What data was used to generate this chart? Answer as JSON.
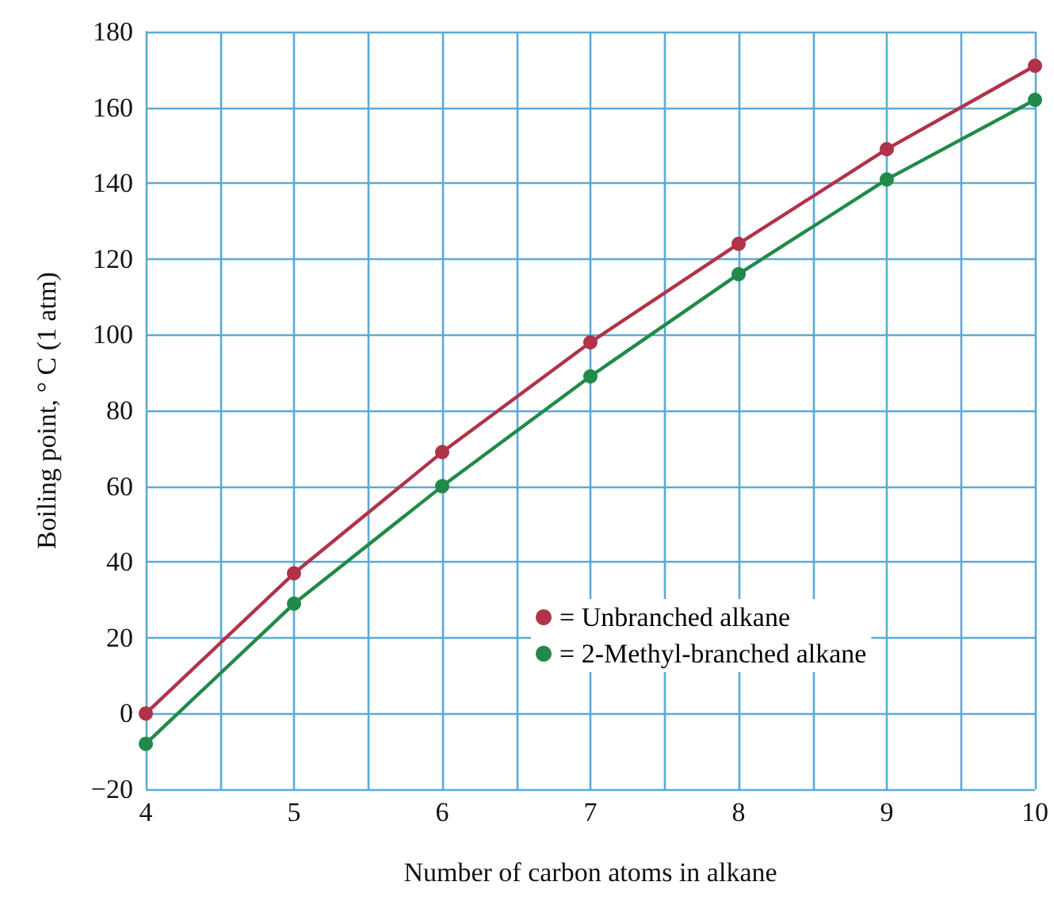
{
  "chart_data": {
    "type": "line",
    "xlabel": "Number of carbon atoms in alkane",
    "ylabel": "Boiling point, ° C (1 atm)",
    "x": [
      4,
      5,
      6,
      7,
      8,
      9,
      10
    ],
    "series": [
      {
        "name": "= Unbranched alkane",
        "color": "#b0334a",
        "values": [
          0,
          37,
          69,
          98,
          124,
          149,
          171
        ]
      },
      {
        "name": "= 2-Methyl-branched alkane",
        "color": "#218a4a",
        "values": [
          -8,
          29,
          60,
          89,
          116,
          141,
          162
        ]
      }
    ],
    "xlim": [
      4,
      10
    ],
    "xticks": [
      4,
      {
        "value": 4.5,
        "label": null
      },
      5,
      {
        "value": 5.5,
        "label": null
      },
      6,
      {
        "value": 6.5,
        "label": null
      },
      7,
      {
        "value": 7.5,
        "label": null
      },
      8,
      {
        "value": 8.5,
        "label": null
      },
      9,
      {
        "value": 9.5,
        "label": null
      },
      10
    ],
    "ylim": [
      -20,
      180
    ],
    "yticks": [
      {
        "value": -20,
        "label": "−20"
      },
      0,
      20,
      40,
      60,
      80,
      100,
      120,
      140,
      160,
      180
    ],
    "grid": true,
    "legend": "bottom right",
    "marker": "circle",
    "line_style": "solid"
  }
}
